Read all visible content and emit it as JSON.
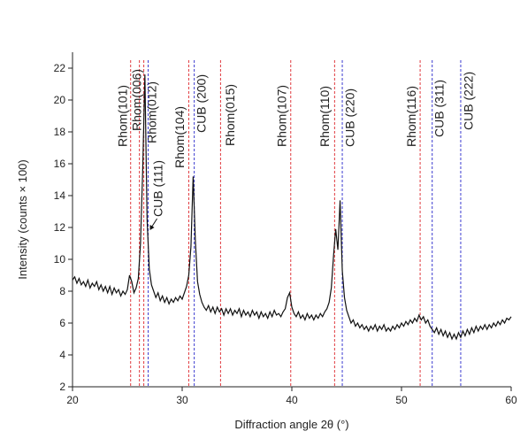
{
  "chart_data": {
    "type": "line",
    "x_label": "Diffraction angle 2θ (°)",
    "y_label": "Intensity (counts × 100)",
    "xlim": [
      20,
      60
    ],
    "xticks": [
      20,
      30,
      40,
      50,
      60
    ],
    "ylim": [
      2,
      23
    ],
    "yticks": [
      2,
      4,
      6,
      8,
      10,
      12,
      14,
      16,
      18,
      20,
      22
    ],
    "series": [
      {
        "color": "#111111",
        "x": [
          20.0,
          20.2,
          20.4,
          20.6,
          20.8,
          21.0,
          21.2,
          21.4,
          21.6,
          21.8,
          22.0,
          22.2,
          22.4,
          22.6,
          22.8,
          23.0,
          23.2,
          23.4,
          23.6,
          23.8,
          24.0,
          24.2,
          24.4,
          24.6,
          24.8,
          25.0,
          25.2,
          25.4,
          25.6,
          25.8,
          26.0,
          26.2,
          26.4,
          26.6,
          26.8,
          27.0,
          27.2,
          27.4,
          27.6,
          27.8,
          28.0,
          28.2,
          28.4,
          28.6,
          28.8,
          29.0,
          29.2,
          29.4,
          29.6,
          29.8,
          30.0,
          30.2,
          30.4,
          30.6,
          30.8,
          31.0,
          31.2,
          31.4,
          31.6,
          31.8,
          32.0,
          32.2,
          32.4,
          32.6,
          32.8,
          33.0,
          33.2,
          33.4,
          33.6,
          33.8,
          34.0,
          34.2,
          34.4,
          34.6,
          34.8,
          35.0,
          35.2,
          35.4,
          35.6,
          35.8,
          36.0,
          36.2,
          36.4,
          36.6,
          36.8,
          37.0,
          37.2,
          37.4,
          37.6,
          37.8,
          38.0,
          38.2,
          38.4,
          38.6,
          38.8,
          39.0,
          39.2,
          39.4,
          39.6,
          39.8,
          40.0,
          40.2,
          40.4,
          40.6,
          40.8,
          41.0,
          41.2,
          41.4,
          41.6,
          41.8,
          42.0,
          42.2,
          42.4,
          42.6,
          42.8,
          43.0,
          43.2,
          43.4,
          43.6,
          43.8,
          44.0,
          44.2,
          44.4,
          44.6,
          44.8,
          45.0,
          45.2,
          45.4,
          45.6,
          45.8,
          46.0,
          46.2,
          46.4,
          46.6,
          46.8,
          47.0,
          47.2,
          47.4,
          47.6,
          47.8,
          48.0,
          48.2,
          48.4,
          48.6,
          48.8,
          49.0,
          49.2,
          49.4,
          49.6,
          49.8,
          50.0,
          50.2,
          50.4,
          50.6,
          50.8,
          51.0,
          51.2,
          51.4,
          51.6,
          51.8,
          52.0,
          52.2,
          52.4,
          52.6,
          52.8,
          53.0,
          53.2,
          53.4,
          53.6,
          53.8,
          54.0,
          54.2,
          54.4,
          54.6,
          54.8,
          55.0,
          55.2,
          55.4,
          55.6,
          55.8,
          56.0,
          56.2,
          56.4,
          56.6,
          56.8,
          57.0,
          57.2,
          57.4,
          57.6,
          57.8,
          58.0,
          58.2,
          58.4,
          58.6,
          58.8,
          59.0,
          59.2,
          59.4,
          59.6,
          59.8,
          60.0
        ],
        "values": [
          8.7,
          8.9,
          8.5,
          8.8,
          8.4,
          8.6,
          8.3,
          8.7,
          8.2,
          8.5,
          8.3,
          8.6,
          8.1,
          8.4,
          8.0,
          8.3,
          7.9,
          8.3,
          7.8,
          8.2,
          7.9,
          8.1,
          7.7,
          8.0,
          7.8,
          8.1,
          9.0,
          8.6,
          7.9,
          8.2,
          8.8,
          11.0,
          15.6,
          21.6,
          12.5,
          9.4,
          8.4,
          8.0,
          7.6,
          7.9,
          7.4,
          7.7,
          7.3,
          7.6,
          7.2,
          7.5,
          7.3,
          7.6,
          7.4,
          7.7,
          7.5,
          7.9,
          8.3,
          9.0,
          10.8,
          15.2,
          11.2,
          8.6,
          7.8,
          7.3,
          7.0,
          6.8,
          7.1,
          6.7,
          7.0,
          6.6,
          7.0,
          6.7,
          6.9,
          6.5,
          6.9,
          6.6,
          6.9,
          6.5,
          6.8,
          6.6,
          6.9,
          6.4,
          6.8,
          6.5,
          6.7,
          6.4,
          6.8,
          6.5,
          6.7,
          6.3,
          6.7,
          6.4,
          6.6,
          6.3,
          6.7,
          6.4,
          6.8,
          6.5,
          6.6,
          6.4,
          6.7,
          6.9,
          7.6,
          7.9,
          7.0,
          6.6,
          6.4,
          6.7,
          6.3,
          6.5,
          6.2,
          6.6,
          6.3,
          6.5,
          6.2,
          6.5,
          6.3,
          6.6,
          6.4,
          6.7,
          6.9,
          7.3,
          8.2,
          10.2,
          11.9,
          10.6,
          13.7,
          9.3,
          7.6,
          6.8,
          6.4,
          6.0,
          6.2,
          5.8,
          6.0,
          5.7,
          5.9,
          5.6,
          5.8,
          5.5,
          5.8,
          5.6,
          5.9,
          5.5,
          5.8,
          5.6,
          5.9,
          5.5,
          5.7,
          5.5,
          5.8,
          5.6,
          5.9,
          5.7,
          6.0,
          5.8,
          6.1,
          5.9,
          6.2,
          6.0,
          6.3,
          6.1,
          6.5,
          6.2,
          6.4,
          6.0,
          6.2,
          5.8,
          5.6,
          5.4,
          5.7,
          5.3,
          5.6,
          5.2,
          5.5,
          5.1,
          5.4,
          5.0,
          5.3,
          5.0,
          5.4,
          5.1,
          5.5,
          5.2,
          5.6,
          5.3,
          5.7,
          5.4,
          5.8,
          5.5,
          5.8,
          5.6,
          5.9,
          5.6,
          5.9,
          5.7,
          6.0,
          5.8,
          6.1,
          5.9,
          6.2,
          6.0,
          6.3,
          6.2,
          6.4
        ]
      }
    ],
    "reference_lines": [
      {
        "label": "Rhom(101)",
        "x": 25.3,
        "color": "#e0393e"
      },
      {
        "label": "Rhom(006)",
        "x": 26.1,
        "color": "#e0393e"
      },
      {
        "label": "Rhom(012)",
        "x": 26.5,
        "color": "#e0393e"
      },
      {
        "label": "CUB (111)",
        "x": 26.9,
        "color": "#3a3ad0"
      },
      {
        "label": "Rhom(104)",
        "x": 30.6,
        "color": "#e0393e"
      },
      {
        "label": "CUB (200)",
        "x": 31.1,
        "color": "#3a3ad0"
      },
      {
        "label": "Rhom(015)",
        "x": 33.5,
        "color": "#e0393e"
      },
      {
        "label": "Rhom(107)",
        "x": 39.9,
        "color": "#e0393e"
      },
      {
        "label": "Rhom(110)",
        "x": 43.9,
        "color": "#e0393e"
      },
      {
        "label": "CUB (220)",
        "x": 44.6,
        "color": "#3a3ad0"
      },
      {
        "label": "Rhom(116)",
        "x": 51.7,
        "color": "#e0393e"
      },
      {
        "label": "CUB (311)",
        "x": 52.8,
        "color": "#3a3ad0"
      },
      {
        "label": "CUB (222)",
        "x": 55.4,
        "color": "#3a3ad0"
      }
    ]
  }
}
